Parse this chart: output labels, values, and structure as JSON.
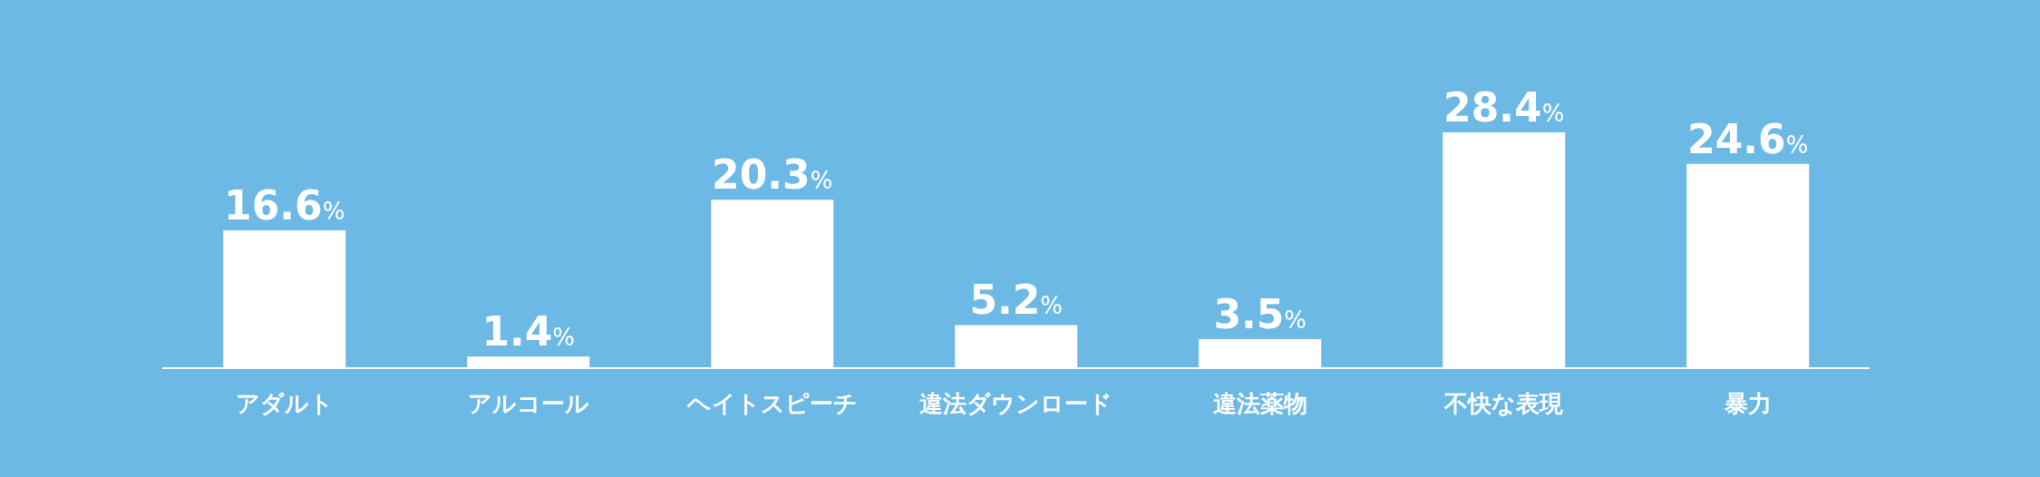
{
  "chart_data": {
    "type": "bar",
    "categories": [
      "アダルト",
      "アルコール",
      "ヘイトスピーチ",
      "違法ダウンロード",
      "違法薬物",
      "不快な表現",
      "暴力"
    ],
    "values": [
      16.6,
      1.4,
      20.3,
      5.2,
      3.5,
      28.4,
      24.6
    ],
    "color": "#ffffff",
    "value_labels": [
      "16.6%",
      "1.4%",
      "20.3%",
      "5.2%",
      "3.5%",
      "28.4%",
      "24.6%"
    ],
    "grid": false,
    "legend": false
  }
}
